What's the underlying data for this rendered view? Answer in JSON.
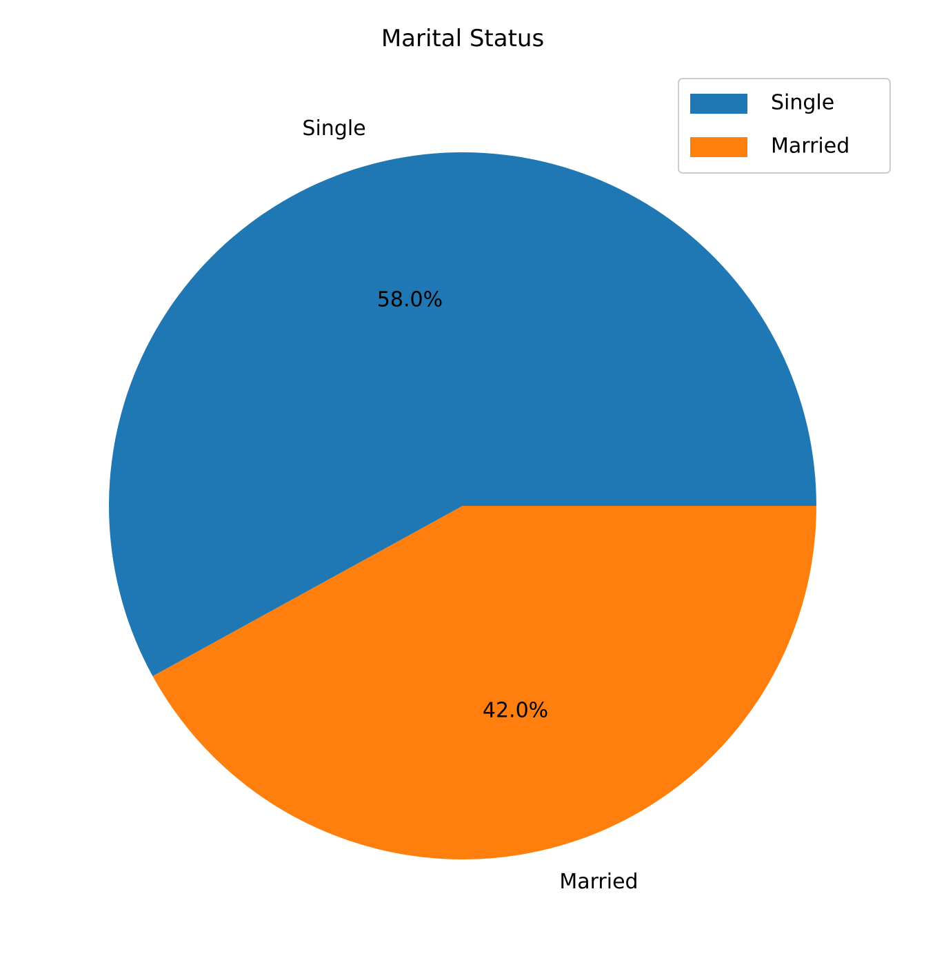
{
  "chart_data": {
    "type": "pie",
    "title": "Marital Status",
    "categories": [
      "Single",
      "Married"
    ],
    "values": [
      58.0,
      42.0
    ],
    "percent_labels": [
      "58.0%",
      "42.0%"
    ],
    "colors": [
      "#1f77b4",
      "#ff7f0e"
    ],
    "start_angle_deg": 0,
    "direction": "counterclockwise",
    "legend": {
      "placement": "top-right",
      "entries": [
        "Single",
        "Married"
      ]
    }
  }
}
